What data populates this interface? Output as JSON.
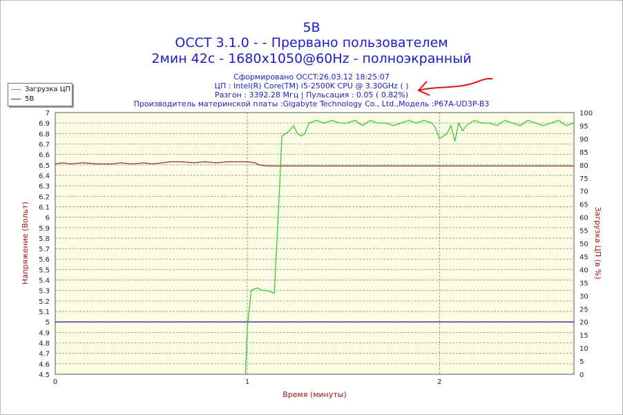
{
  "title_lines": [
    "5В",
    "OCCT 3.1.0 -  - Прервано пользователем",
    "2мин 42с - 1680x1050@60Hz - полноэкранный"
  ],
  "info_lines": [
    "Сформировано OCCT:26.03.12 18:25:07",
    "ЦП : Intel(R) Core(TM) i5-2500K CPU @ 3.30GHz (  )",
    "Разгон : 3392.28 Мгц | Пульсация : 0.05 ( 0.82%)",
    "Производитель материнской платы :Gigabyte Technology Co., Ltd.,Модель :P67A-UD3P-B3"
  ],
  "legend": [
    {
      "label": "Загрузка ЦП",
      "color": "#22cc22"
    },
    {
      "label": "5В",
      "color": "#8b1a1a"
    }
  ],
  "colors": {
    "title": "#1a1acc",
    "axis_label": "#aa1111",
    "plot_bg": "#fcfce4",
    "grid": "#8a8a8a",
    "reference_line": "#00008b"
  },
  "chart_data": {
    "type": "line",
    "xlabel": "Время (минуты)",
    "ylabel_left": "Напряжение (Вольт)",
    "ylabel_right": "Загрузка ЦП (в %)",
    "xlim": [
      0,
      2.7
    ],
    "x_ticks": [
      0,
      1,
      2
    ],
    "ylim_left": [
      4.5,
      7
    ],
    "y_ticks_left": [
      "4.5",
      "4.6",
      "4.7",
      "4.8",
      "4.9",
      "5",
      "5.1",
      "5.2",
      "5.3",
      "5.4",
      "5.5",
      "5.6",
      "5.7",
      "5.8",
      "5.9",
      "6",
      "6.1",
      "6.2",
      "6.3",
      "6.4",
      "6.5",
      "6.6",
      "6.7",
      "6.8",
      "6.9",
      "7"
    ],
    "ylim_right": [
      0,
      100
    ],
    "y_ticks_right": [
      "0",
      "5",
      "10",
      "15",
      "20",
      "25",
      "30",
      "35",
      "40",
      "45",
      "50",
      "55",
      "60",
      "65",
      "70",
      "75",
      "80",
      "85",
      "90",
      "95",
      "100"
    ],
    "grid": true,
    "reference_value": 5,
    "series": [
      {
        "name": "5В",
        "axis": "left",
        "color": "#8b1a1a",
        "x": [
          0,
          0.04,
          0.08,
          0.14,
          0.22,
          0.3,
          0.34,
          0.4,
          0.46,
          0.5,
          0.56,
          0.6,
          0.66,
          0.72,
          0.78,
          0.84,
          0.9,
          0.96,
          1.0,
          1.04,
          1.06,
          1.1,
          1.2,
          1.5,
          2.0,
          2.5,
          2.7
        ],
        "values": [
          6.51,
          6.52,
          6.51,
          6.52,
          6.51,
          6.51,
          6.52,
          6.51,
          6.52,
          6.51,
          6.52,
          6.53,
          6.53,
          6.52,
          6.53,
          6.52,
          6.53,
          6.53,
          6.53,
          6.52,
          6.5,
          6.49,
          6.49,
          6.49,
          6.49,
          6.49,
          6.49
        ]
      },
      {
        "name": "Загрузка ЦП",
        "axis": "right",
        "color": "#22cc22",
        "x": [
          0.99,
          1.0,
          1.02,
          1.05,
          1.08,
          1.1,
          1.14,
          1.16,
          1.18,
          1.2,
          1.22,
          1.24,
          1.26,
          1.28,
          1.3,
          1.32,
          1.36,
          1.4,
          1.44,
          1.48,
          1.52,
          1.56,
          1.6,
          1.64,
          1.68,
          1.72,
          1.76,
          1.8,
          1.84,
          1.88,
          1.92,
          1.96,
          1.98,
          2.0,
          2.02,
          2.04,
          2.06,
          2.08,
          2.1,
          2.12,
          2.14,
          2.18,
          2.22,
          2.26,
          2.3,
          2.34,
          2.38,
          2.42,
          2.46,
          2.5,
          2.54,
          2.58,
          2.62,
          2.66,
          2.7
        ],
        "values": [
          0,
          18,
          32,
          33,
          32,
          32,
          31,
          60,
          91,
          92,
          93,
          95,
          92,
          91,
          92,
          96,
          97,
          96,
          97,
          96,
          96,
          97,
          95,
          97,
          96,
          96,
          95,
          96,
          97,
          96,
          97,
          96,
          94,
          90,
          91,
          92,
          95,
          89,
          96,
          93,
          95,
          97,
          96,
          96,
          95,
          97,
          96,
          95,
          97,
          96,
          95,
          96,
          97,
          95,
          96
        ]
      }
    ]
  }
}
